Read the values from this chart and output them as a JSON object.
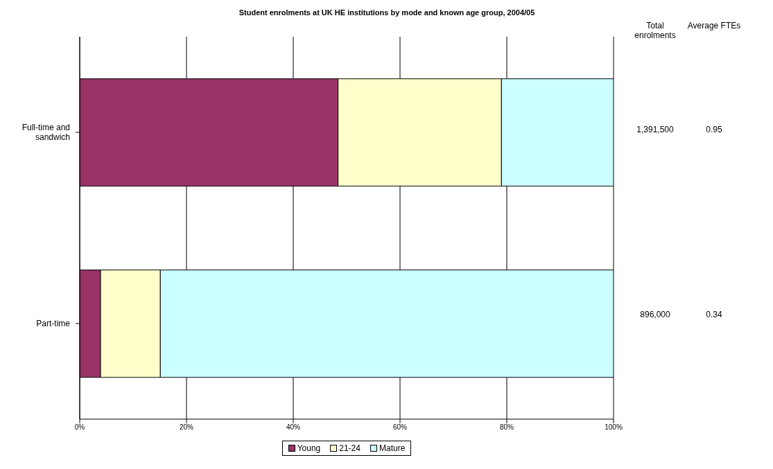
{
  "chart_data": {
    "type": "bar",
    "title": "Student enrolments at UK HE institutions by mode and known age group, 2004/05",
    "orientation": "horizontal",
    "stacked": true,
    "categories": [
      "Full-time and sandwich",
      "Part-time"
    ],
    "series": [
      {
        "name": "Young",
        "color": "#993366",
        "values": [
          48.4,
          3.9
        ]
      },
      {
        "name": "21-24",
        "color": "#ffffcc",
        "values": [
          30.6,
          11.2
        ]
      },
      {
        "name": "Mature",
        "color": "#ccffff",
        "values": [
          21.0,
          84.9
        ]
      }
    ],
    "xlim": [
      0,
      100
    ],
    "xticks": [
      {
        "value": 0,
        "label": "0%"
      },
      {
        "value": 20,
        "label": "20%"
      },
      {
        "value": 40,
        "label": "40%"
      },
      {
        "value": 60,
        "label": "60%"
      },
      {
        "value": 80,
        "label": "80%"
      },
      {
        "value": 100,
        "label": "100%"
      }
    ],
    "grid": "x",
    "legend": "bottom",
    "annotations": [
      "Total enrolments",
      "Average FTEs",
      "1,391,500",
      "0.95",
      "896,000",
      "0.34"
    ]
  }
}
